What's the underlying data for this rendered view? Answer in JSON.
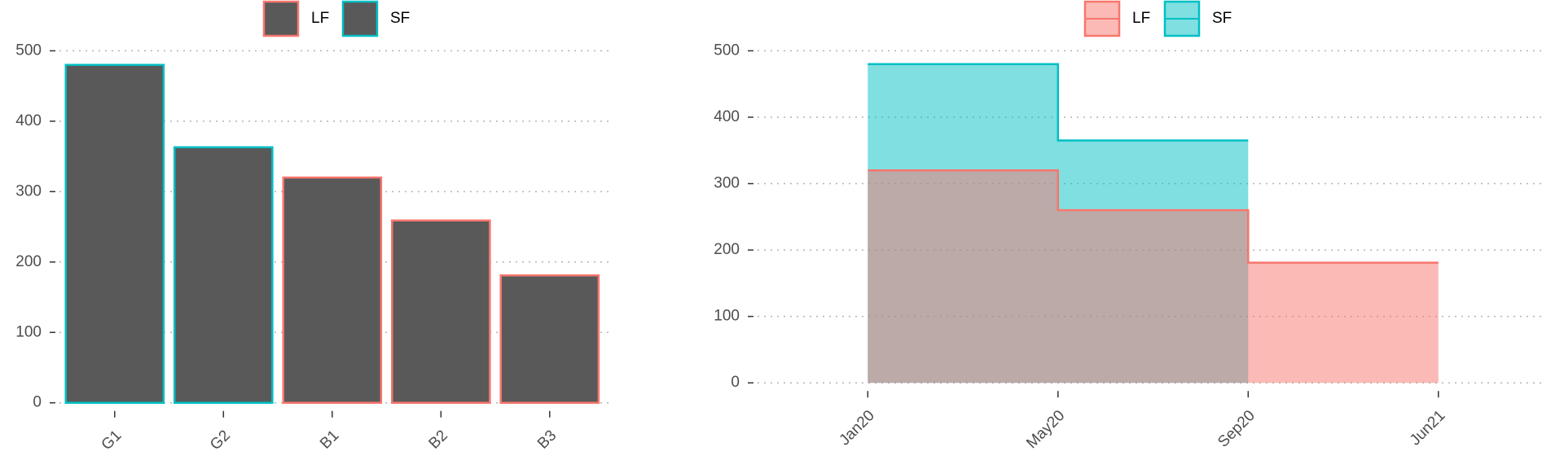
{
  "chart_data": [
    {
      "type": "bar",
      "categories": [
        "G1",
        "G2",
        "B1",
        "B2",
        "B3"
      ],
      "series": [
        {
          "name": "LF",
          "color": "#F8766D",
          "values": [
            null,
            null,
            320,
            259,
            181
          ]
        },
        {
          "name": "SF",
          "color": "#00BFC4",
          "values": [
            480,
            363,
            null,
            null,
            null
          ]
        }
      ],
      "bar_fill": "#595959",
      "ylim": [
        0,
        500
      ],
      "yticks": [
        0,
        100,
        200,
        300,
        400,
        500
      ],
      "grid": true,
      "legend": "top"
    },
    {
      "type": "step-area",
      "categories": [
        "Jan20",
        "May20",
        "Sep20",
        "Jun21"
      ],
      "series": [
        {
          "name": "LF",
          "color": "#F8766D",
          "values": [
            320,
            260,
            181,
            181
          ]
        },
        {
          "name": "SF",
          "color": "#00BFC4",
          "values": [
            480,
            365,
            365,
            null
          ]
        }
      ],
      "ylim": [
        0,
        500
      ],
      "yticks": [
        0,
        100,
        200,
        300,
        400,
        500
      ],
      "grid": true,
      "legend": "top"
    }
  ]
}
